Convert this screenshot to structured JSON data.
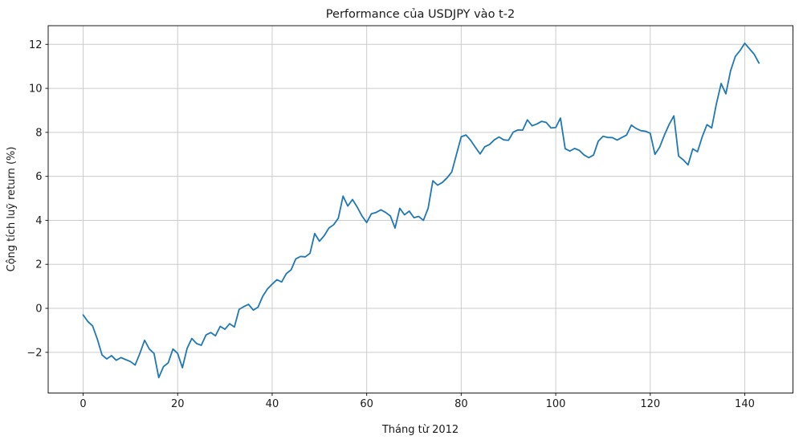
{
  "figure": {
    "title": "Performance của USDJPY vào t-2",
    "xlabel": "Tháng từ 2012",
    "ylabel": "Cộng tích luỹ return (%)"
  },
  "chart_data": {
    "type": "line",
    "title": "Performance của USDJPY vào t-2",
    "xlabel": "Tháng từ 2012",
    "ylabel": "Cộng tích luỹ return (%)",
    "x_description": "month index, one point per month",
    "x_start": 0,
    "x_step": 1,
    "values": [
      -0.3,
      -0.6,
      -0.8,
      -1.4,
      -2.12,
      -2.3,
      -2.15,
      -2.36,
      -2.24,
      -2.33,
      -2.42,
      -2.58,
      -2.05,
      -1.45,
      -1.85,
      -2.05,
      -3.15,
      -2.65,
      -2.48,
      -1.85,
      -2.05,
      -2.7,
      -1.82,
      -1.37,
      -1.6,
      -1.68,
      -1.21,
      -1.1,
      -1.25,
      -0.82,
      -0.95,
      -0.7,
      -0.85,
      -0.05,
      0.08,
      0.18,
      -0.08,
      0.05,
      0.55,
      0.88,
      1.1,
      1.3,
      1.2,
      1.58,
      1.75,
      2.25,
      2.36,
      2.34,
      2.5,
      3.4,
      3.05,
      3.3,
      3.65,
      3.8,
      4.1,
      5.1,
      4.65,
      4.95,
      4.6,
      4.2,
      3.9,
      4.3,
      4.36,
      4.48,
      4.36,
      4.2,
      3.65,
      4.55,
      4.25,
      4.42,
      4.12,
      4.18,
      4.0,
      4.55,
      5.8,
      5.6,
      5.72,
      5.93,
      6.2,
      7.0,
      7.8,
      7.88,
      7.64,
      7.32,
      7.02,
      7.35,
      7.45,
      7.66,
      7.79,
      7.66,
      7.64,
      8.01,
      8.11,
      8.1,
      8.57,
      8.3,
      8.38,
      8.5,
      8.45,
      8.2,
      8.22,
      8.65,
      7.26,
      7.15,
      7.27,
      7.18,
      6.97,
      6.85,
      6.97,
      7.6,
      7.82,
      7.77,
      7.76,
      7.65,
      7.77,
      7.88,
      8.33,
      8.18,
      8.08,
      8.05,
      7.96,
      7.0,
      7.33,
      7.88,
      8.36,
      8.75,
      6.92,
      6.75,
      6.52,
      7.25,
      7.12,
      7.8,
      8.35,
      8.2,
      9.3,
      10.22,
      9.75,
      10.8,
      11.45,
      11.72,
      12.05,
      11.8,
      11.55,
      11.15
    ],
    "xticks": [
      0,
      20,
      40,
      60,
      80,
      100,
      120,
      140
    ],
    "yticks": [
      -2,
      0,
      2,
      4,
      6,
      8,
      10,
      12
    ],
    "xlim": [
      -7.4,
      150.2
    ],
    "ylim": [
      -3.85,
      12.85
    ],
    "grid": true,
    "legend_position": "none",
    "line_color": "#1f77b4",
    "grid_color": "#cccccc",
    "spine_color": "#1a1a1a",
    "background": "#ffffff"
  }
}
